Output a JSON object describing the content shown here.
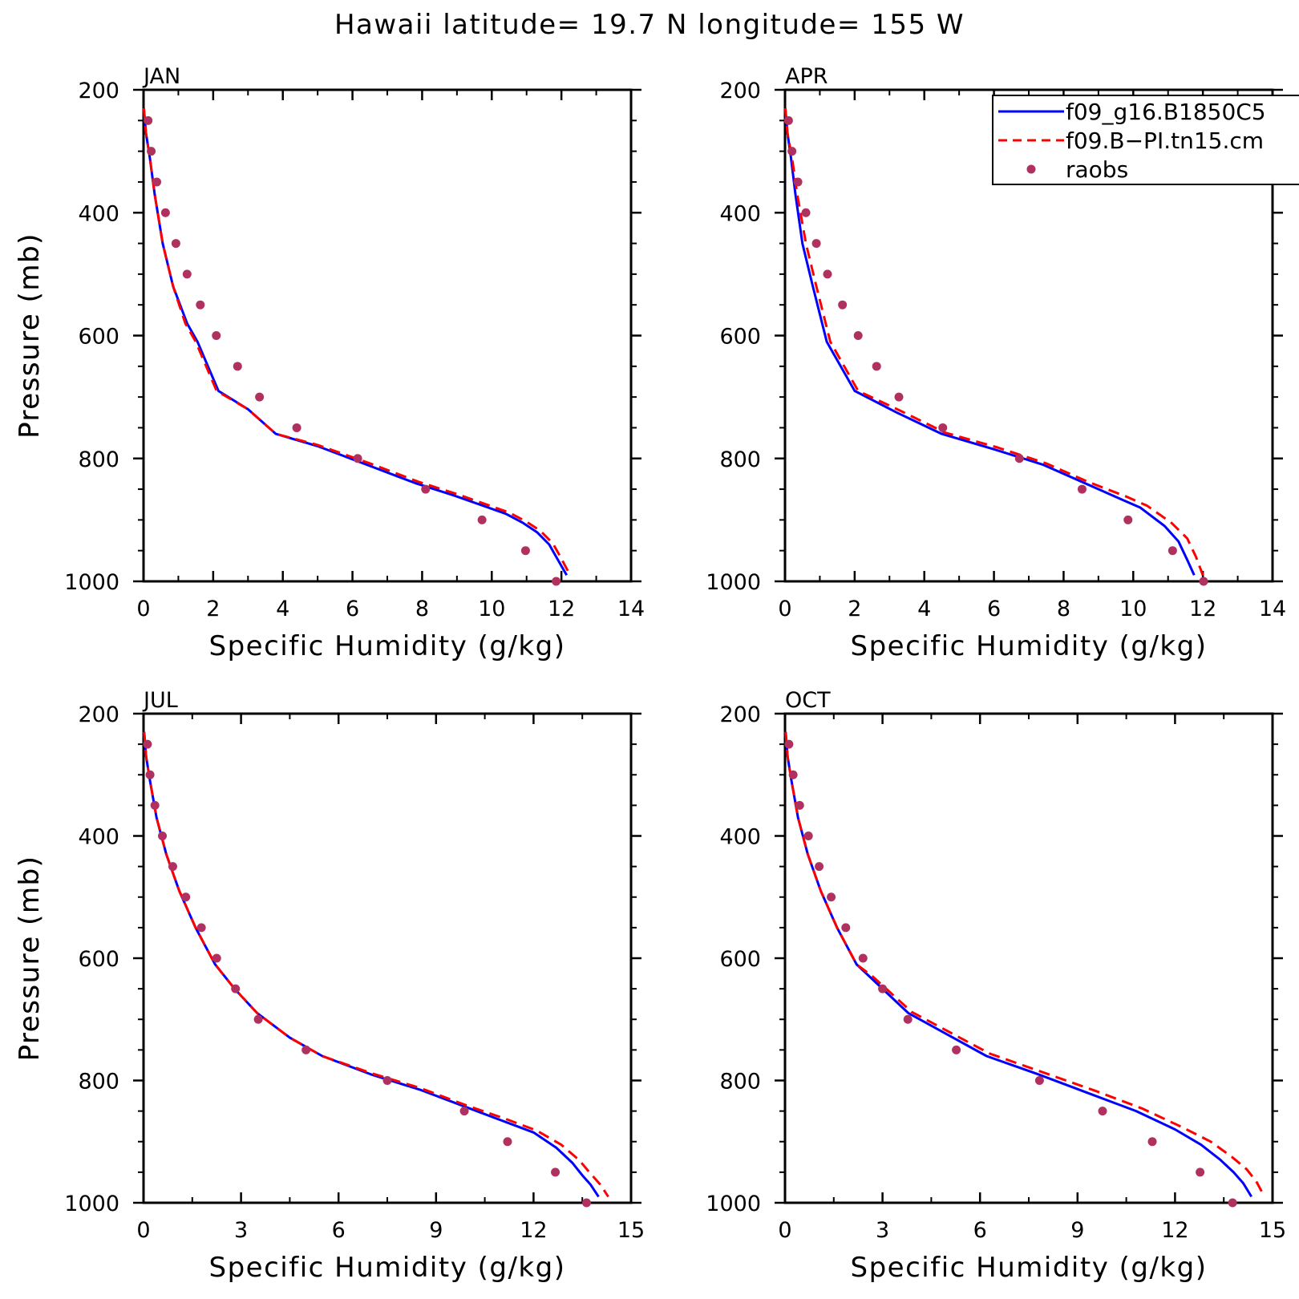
{
  "title": "Hawaii  latitude= 19.7 N longitude= 155 W",
  "colors": {
    "model1": "#0000ff",
    "model2": "#ff0000",
    "raobs": "#b03060"
  },
  "legend": {
    "placement": "top-right of APR panel",
    "entries": [
      {
        "label": "f09_g16.B1850C5",
        "style": "solid",
        "color": "#0000ff"
      },
      {
        "label": "f09.B−PI.tn15.cm",
        "style": "dashed",
        "color": "#ff0000"
      },
      {
        "label": "raobs",
        "style": "marker",
        "color": "#b03060"
      }
    ]
  },
  "chart_data": [
    {
      "type": "line",
      "title": "JAN",
      "xlabel": "Specific Humidity (g/kg)",
      "ylabel": "Pressure (mb)",
      "xlim": [
        0,
        14
      ],
      "ylim": [
        1000,
        200
      ],
      "y_reversed": true,
      "xticks": [
        "0",
        "2",
        "4",
        "6",
        "8",
        "10",
        "12",
        "14"
      ],
      "yticks": [
        "200",
        "400",
        "600",
        "800",
        "1000"
      ],
      "series": [
        {
          "name": "f09_g16.B1850C5",
          "style": "solid",
          "x": [
            0.01,
            0.07,
            0.18,
            0.32,
            0.55,
            0.85,
            1.25,
            1.55,
            2.15,
            3.0,
            3.8,
            5.0,
            6.4,
            7.8,
            8.9,
            9.9,
            10.4,
            10.9,
            11.3,
            11.65,
            11.85,
            12.0,
            12.15
          ],
          "y": [
            230,
            270,
            310,
            370,
            450,
            520,
            580,
            610,
            690,
            720,
            760,
            780,
            810,
            840,
            860,
            880,
            890,
            905,
            920,
            940,
            960,
            975,
            990
          ]
        },
        {
          "name": "f09.B−PI.tn15.cm",
          "style": "dashed",
          "x": [
            0.01,
            0.07,
            0.18,
            0.32,
            0.55,
            0.85,
            1.2,
            1.5,
            2.1,
            3.0,
            3.8,
            5.0,
            6.5,
            7.9,
            9.0,
            10.0,
            10.5,
            11.0,
            11.4,
            11.75,
            11.95,
            12.1,
            12.25
          ],
          "y": [
            230,
            270,
            310,
            370,
            450,
            520,
            580,
            610,
            690,
            720,
            760,
            778,
            808,
            838,
            858,
            878,
            888,
            903,
            918,
            938,
            958,
            974,
            990
          ]
        },
        {
          "name": "raobs",
          "style": "marker",
          "x": [
            0.13,
            0.22,
            0.38,
            0.63,
            0.93,
            1.25,
            1.63,
            2.09,
            2.7,
            3.33,
            4.4,
            6.15,
            8.1,
            9.72,
            10.97,
            11.85
          ],
          "y": [
            250,
            300,
            350,
            400,
            450,
            500,
            550,
            600,
            650,
            700,
            750,
            800,
            850,
            900,
            950,
            1000
          ]
        }
      ]
    },
    {
      "type": "line",
      "title": "APR",
      "xlabel": "Specific Humidity (g/kg)",
      "ylabel": "Pressure (mb)",
      "xlim": [
        0,
        14
      ],
      "ylim": [
        1000,
        200
      ],
      "y_reversed": true,
      "xticks": [
        "0",
        "2",
        "4",
        "6",
        "8",
        "10",
        "12",
        "14"
      ],
      "yticks": [
        "200",
        "400",
        "600",
        "800",
        "1000"
      ],
      "series": [
        {
          "name": "f09_g16.B1850C5",
          "style": "solid",
          "x": [
            0.01,
            0.07,
            0.17,
            0.3,
            0.5,
            0.8,
            1.2,
            2.0,
            3.2,
            4.5,
            6.0,
            7.4,
            8.6,
            9.6,
            10.2,
            10.9,
            11.3,
            11.55,
            11.75
          ],
          "y": [
            230,
            270,
            310,
            370,
            450,
            520,
            610,
            690,
            725,
            760,
            785,
            810,
            840,
            865,
            880,
            910,
            935,
            965,
            990
          ]
        },
        {
          "name": "f09.B−PI.tn15.cm",
          "style": "dashed",
          "x": [
            0.01,
            0.07,
            0.2,
            0.35,
            0.6,
            0.9,
            1.3,
            2.1,
            3.3,
            4.6,
            6.1,
            7.5,
            8.7,
            9.8,
            10.4,
            11.1,
            11.55,
            11.8,
            12.0
          ],
          "y": [
            230,
            270,
            310,
            370,
            450,
            520,
            610,
            690,
            722,
            758,
            782,
            808,
            838,
            862,
            877,
            905,
            930,
            960,
            990
          ]
        },
        {
          "name": "raobs",
          "style": "marker",
          "x": [
            0.1,
            0.2,
            0.37,
            0.6,
            0.9,
            1.22,
            1.65,
            2.1,
            2.63,
            3.27,
            4.53,
            6.73,
            8.53,
            9.85,
            11.13,
            12.02
          ],
          "y": [
            250,
            300,
            350,
            400,
            450,
            500,
            550,
            600,
            650,
            700,
            750,
            800,
            850,
            900,
            950,
            1000
          ]
        }
      ]
    },
    {
      "type": "line",
      "title": "JUL",
      "xlabel": "Specific Humidity (g/kg)",
      "ylabel": "Pressure (mb)",
      "xlim": [
        0,
        15
      ],
      "ylim": [
        1000,
        200
      ],
      "y_reversed": true,
      "xticks": [
        "0",
        "3",
        "6",
        "9",
        "12",
        "15"
      ],
      "yticks": [
        "200",
        "400",
        "600",
        "800",
        "1000"
      ],
      "series": [
        {
          "name": "f09_g16.B1850C5",
          "style": "solid",
          "x": [
            0.02,
            0.08,
            0.2,
            0.4,
            0.7,
            1.1,
            1.6,
            2.2,
            2.8,
            3.5,
            4.5,
            5.5,
            7.0,
            8.5,
            10.0,
            11.0,
            12.0,
            12.7,
            13.2,
            13.5,
            13.75,
            14.0
          ],
          "y": [
            230,
            270,
            310,
            370,
            430,
            490,
            550,
            610,
            650,
            690,
            730,
            760,
            790,
            815,
            845,
            865,
            885,
            910,
            935,
            955,
            970,
            990
          ]
        },
        {
          "name": "f09.B−PI.tn15.cm",
          "style": "dashed",
          "x": [
            0.02,
            0.08,
            0.2,
            0.4,
            0.7,
            1.1,
            1.6,
            2.2,
            2.8,
            3.5,
            4.5,
            5.5,
            7.0,
            8.5,
            10.0,
            11.1,
            12.1,
            12.85,
            13.4,
            13.75,
            14.05,
            14.3
          ],
          "y": [
            230,
            270,
            310,
            370,
            430,
            490,
            550,
            610,
            650,
            690,
            730,
            760,
            788,
            812,
            842,
            862,
            882,
            905,
            930,
            952,
            970,
            990
          ]
        },
        {
          "name": "raobs",
          "style": "marker",
          "x": [
            0.12,
            0.2,
            0.35,
            0.58,
            0.9,
            1.3,
            1.78,
            2.25,
            2.83,
            3.53,
            5.0,
            7.5,
            9.87,
            11.2,
            12.67,
            13.63
          ],
          "y": [
            250,
            300,
            350,
            400,
            450,
            500,
            550,
            600,
            650,
            700,
            750,
            800,
            850,
            900,
            950,
            1000
          ]
        }
      ]
    },
    {
      "type": "line",
      "title": "OCT",
      "xlabel": "Specific Humidity (g/kg)",
      "ylabel": "Pressure (mb)",
      "xlim": [
        0,
        15
      ],
      "ylim": [
        1000,
        200
      ],
      "y_reversed": true,
      "xticks": [
        "0",
        "3",
        "6",
        "9",
        "12",
        "15"
      ],
      "yticks": [
        "200",
        "400",
        "600",
        "800",
        "1000"
      ],
      "series": [
        {
          "name": "f09_g16.B1850C5",
          "style": "solid",
          "x": [
            0.02,
            0.08,
            0.2,
            0.4,
            0.7,
            1.1,
            1.6,
            2.2,
            2.6,
            3.8,
            5.0,
            6.2,
            7.8,
            9.3,
            10.8,
            12.0,
            12.8,
            13.4,
            13.8,
            14.1,
            14.35
          ],
          "y": [
            230,
            270,
            310,
            370,
            430,
            490,
            550,
            610,
            630,
            690,
            725,
            760,
            790,
            820,
            850,
            880,
            905,
            930,
            950,
            968,
            990
          ]
        },
        {
          "name": "f09.B−PI.tn15.cm",
          "style": "dashed",
          "x": [
            0.02,
            0.08,
            0.2,
            0.4,
            0.7,
            1.1,
            1.6,
            2.2,
            2.7,
            3.9,
            5.1,
            6.3,
            7.9,
            9.5,
            11.0,
            12.2,
            13.1,
            13.75,
            14.2,
            14.5,
            14.75
          ],
          "y": [
            230,
            270,
            310,
            370,
            430,
            490,
            550,
            610,
            630,
            688,
            722,
            756,
            786,
            816,
            846,
            876,
            900,
            925,
            945,
            965,
            990
          ]
        },
        {
          "name": "raobs",
          "style": "marker",
          "x": [
            0.12,
            0.25,
            0.45,
            0.72,
            1.05,
            1.42,
            1.87,
            2.4,
            3.0,
            3.78,
            5.27,
            7.83,
            9.77,
            11.3,
            12.77,
            13.77
          ],
          "y": [
            250,
            300,
            350,
            400,
            450,
            500,
            550,
            600,
            650,
            700,
            750,
            800,
            850,
            900,
            950,
            1000
          ]
        }
      ]
    }
  ]
}
